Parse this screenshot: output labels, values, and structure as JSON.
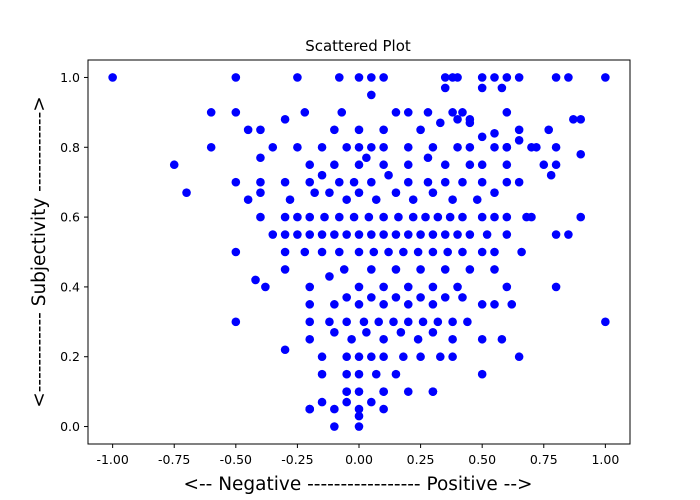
{
  "chart_data": {
    "type": "scatter",
    "title": "Scattered Plot",
    "xlabel": "<-- Negative ----------------- Positive -->",
    "ylabel": "<------------ Subjectivity ------------>",
    "xlim": [
      -1.1,
      1.1
    ],
    "ylim": [
      -0.05,
      1.05
    ],
    "x_ticks": [
      -1.0,
      -0.75,
      -0.5,
      -0.25,
      0.0,
      0.25,
      0.5,
      0.75,
      1.0
    ],
    "x_tick_labels": [
      "-1.00",
      "-0.75",
      "-0.50",
      "-0.25",
      "0.00",
      "0.25",
      "0.50",
      "0.75",
      "1.00"
    ],
    "y_ticks": [
      0.0,
      0.2,
      0.4,
      0.6,
      0.8,
      1.0
    ],
    "y_tick_labels": [
      "0.0",
      "0.2",
      "0.4",
      "0.6",
      "0.8",
      "1.0"
    ],
    "grid": false,
    "legend": "none",
    "marker_color": "#0000ff",
    "series": [
      {
        "x": [
          -1.0,
          -0.5,
          -0.25,
          -0.08,
          0.0,
          0.05,
          0.1,
          0.35,
          0.38,
          0.4,
          0.5,
          0.55,
          0.6,
          0.65,
          0.8,
          0.85,
          1.0,
          0.05,
          0.35,
          0.5,
          0.58,
          -0.6,
          -0.5,
          -0.22,
          -0.07,
          0.15,
          0.2,
          0.28,
          0.38,
          0.42,
          0.45,
          0.6,
          -0.45,
          -0.4,
          -0.3,
          -0.1,
          0.0,
          0.1,
          0.25,
          0.33,
          0.4,
          0.45,
          0.5,
          0.55,
          0.6,
          0.65,
          0.7,
          0.77,
          0.87,
          0.9,
          -0.6,
          -0.35,
          -0.25,
          -0.15,
          -0.05,
          0.0,
          0.05,
          0.1,
          0.2,
          0.3,
          0.4,
          0.45,
          0.55,
          0.6,
          0.65,
          0.72,
          0.8,
          0.9,
          -0.75,
          -0.4,
          -0.2,
          -0.1,
          0.0,
          0.03,
          0.1,
          0.2,
          0.28,
          0.35,
          0.45,
          0.5,
          0.6,
          0.75,
          0.8,
          -0.7,
          -0.5,
          -0.4,
          -0.3,
          -0.2,
          -0.15,
          -0.08,
          -0.02,
          0.05,
          0.12,
          0.2,
          0.28,
          0.35,
          0.42,
          0.5,
          0.6,
          0.65,
          0.78,
          -0.45,
          -0.4,
          -0.28,
          -0.18,
          -0.12,
          -0.05,
          0.0,
          0.07,
          0.15,
          0.22,
          0.3,
          0.38,
          0.48,
          0.55,
          -0.4,
          -0.3,
          -0.25,
          -0.2,
          -0.14,
          -0.08,
          -0.02,
          0.04,
          0.1,
          0.16,
          0.22,
          0.27,
          0.32,
          0.37,
          0.42,
          0.5,
          0.55,
          0.6,
          0.68,
          0.7,
          0.9,
          -0.35,
          -0.3,
          -0.25,
          -0.2,
          -0.15,
          -0.1,
          -0.05,
          0.0,
          0.05,
          0.1,
          0.15,
          0.2,
          0.25,
          0.3,
          0.35,
          0.4,
          0.45,
          0.52,
          0.6,
          0.8,
          0.85,
          -0.5,
          -0.3,
          -0.22,
          -0.15,
          -0.08,
          0.0,
          0.06,
          0.12,
          0.18,
          0.24,
          0.3,
          0.36,
          0.42,
          0.5,
          0.55,
          0.66,
          -0.42,
          -0.38,
          -0.3,
          -0.2,
          -0.12,
          -0.06,
          0.0,
          0.05,
          0.1,
          0.15,
          0.2,
          0.25,
          0.3,
          0.35,
          0.4,
          0.45,
          0.55,
          0.6,
          0.8,
          -0.2,
          -0.1,
          -0.05,
          0.0,
          0.05,
          0.1,
          0.15,
          0.2,
          0.25,
          0.3,
          0.35,
          0.42,
          0.5,
          0.55,
          0.62,
          -0.5,
          -0.2,
          -0.12,
          -0.05,
          0.02,
          0.08,
          0.14,
          0.2,
          0.26,
          0.32,
          0.38,
          0.44,
          1.0,
          -0.3,
          -0.2,
          -0.1,
          -0.03,
          0.03,
          0.1,
          0.17,
          0.24,
          0.3,
          0.38,
          0.5,
          0.58,
          0.65,
          -0.15,
          -0.05,
          0.0,
          0.05,
          0.1,
          0.18,
          0.25,
          0.33,
          0.38,
          -0.15,
          -0.05,
          0.0,
          0.07,
          0.15,
          -0.05,
          0.0,
          0.1,
          0.3,
          0.5,
          -0.2,
          -0.15,
          -0.05,
          0.0,
          0.05,
          0.1,
          0.2,
          0.3,
          -0.2,
          -0.1,
          -0.05,
          0.0,
          0.1,
          -0.1,
          0.0
        ],
        "y": [
          1.0,
          1.0,
          1.0,
          1.0,
          1.0,
          1.0,
          1.0,
          1.0,
          1.0,
          1.0,
          1.0,
          1.0,
          1.0,
          1.0,
          1.0,
          1.0,
          1.0,
          0.95,
          0.97,
          0.97,
          0.97,
          0.9,
          0.9,
          0.9,
          0.9,
          0.9,
          0.9,
          0.9,
          0.9,
          0.9,
          0.88,
          0.9,
          0.85,
          0.85,
          0.88,
          0.85,
          0.85,
          0.85,
          0.85,
          0.87,
          0.88,
          0.87,
          0.83,
          0.84,
          0.8,
          0.85,
          0.8,
          0.85,
          0.88,
          0.88,
          0.8,
          0.8,
          0.8,
          0.8,
          0.8,
          0.8,
          0.8,
          0.8,
          0.8,
          0.8,
          0.8,
          0.8,
          0.8,
          0.8,
          0.82,
          0.8,
          0.8,
          0.78,
          0.75,
          0.77,
          0.75,
          0.75,
          0.75,
          0.77,
          0.75,
          0.75,
          0.77,
          0.75,
          0.75,
          0.75,
          0.75,
          0.75,
          0.75,
          0.67,
          0.7,
          0.7,
          0.7,
          0.7,
          0.72,
          0.7,
          0.7,
          0.7,
          0.72,
          0.7,
          0.7,
          0.7,
          0.7,
          0.7,
          0.7,
          0.7,
          0.72,
          0.65,
          0.67,
          0.65,
          0.67,
          0.67,
          0.65,
          0.67,
          0.65,
          0.67,
          0.65,
          0.67,
          0.65,
          0.65,
          0.67,
          0.6,
          0.6,
          0.6,
          0.6,
          0.6,
          0.6,
          0.6,
          0.6,
          0.6,
          0.6,
          0.6,
          0.6,
          0.6,
          0.6,
          0.6,
          0.6,
          0.6,
          0.6,
          0.6,
          0.6,
          0.6,
          0.55,
          0.55,
          0.55,
          0.55,
          0.55,
          0.55,
          0.55,
          0.55,
          0.55,
          0.55,
          0.55,
          0.55,
          0.55,
          0.55,
          0.55,
          0.55,
          0.55,
          0.55,
          0.55,
          0.55,
          0.55,
          0.5,
          0.5,
          0.5,
          0.5,
          0.5,
          0.5,
          0.5,
          0.5,
          0.5,
          0.5,
          0.5,
          0.5,
          0.5,
          0.5,
          0.5,
          0.5,
          0.42,
          0.4,
          0.45,
          0.4,
          0.43,
          0.45,
          0.4,
          0.45,
          0.4,
          0.45,
          0.4,
          0.45,
          0.4,
          0.45,
          0.4,
          0.45,
          0.45,
          0.4,
          0.4,
          0.35,
          0.35,
          0.37,
          0.35,
          0.37,
          0.35,
          0.37,
          0.35,
          0.37,
          0.35,
          0.37,
          0.37,
          0.35,
          0.35,
          0.35,
          0.3,
          0.3,
          0.3,
          0.3,
          0.3,
          0.3,
          0.3,
          0.3,
          0.3,
          0.3,
          0.3,
          0.3,
          0.3,
          0.22,
          0.25,
          0.27,
          0.25,
          0.27,
          0.25,
          0.27,
          0.25,
          0.27,
          0.25,
          0.25,
          0.25,
          0.2,
          0.2,
          0.2,
          0.2,
          0.2,
          0.2,
          0.2,
          0.2,
          0.2,
          0.2,
          0.15,
          0.15,
          0.15,
          0.15,
          0.15,
          0.1,
          0.1,
          0.1,
          0.1,
          0.15,
          0.05,
          0.07,
          0.1,
          0.05,
          0.07,
          0.1,
          0.1,
          0.1,
          0.05,
          0.05,
          0.07,
          0.03,
          0.05,
          0.0,
          0.0
        ]
      }
    ]
  }
}
